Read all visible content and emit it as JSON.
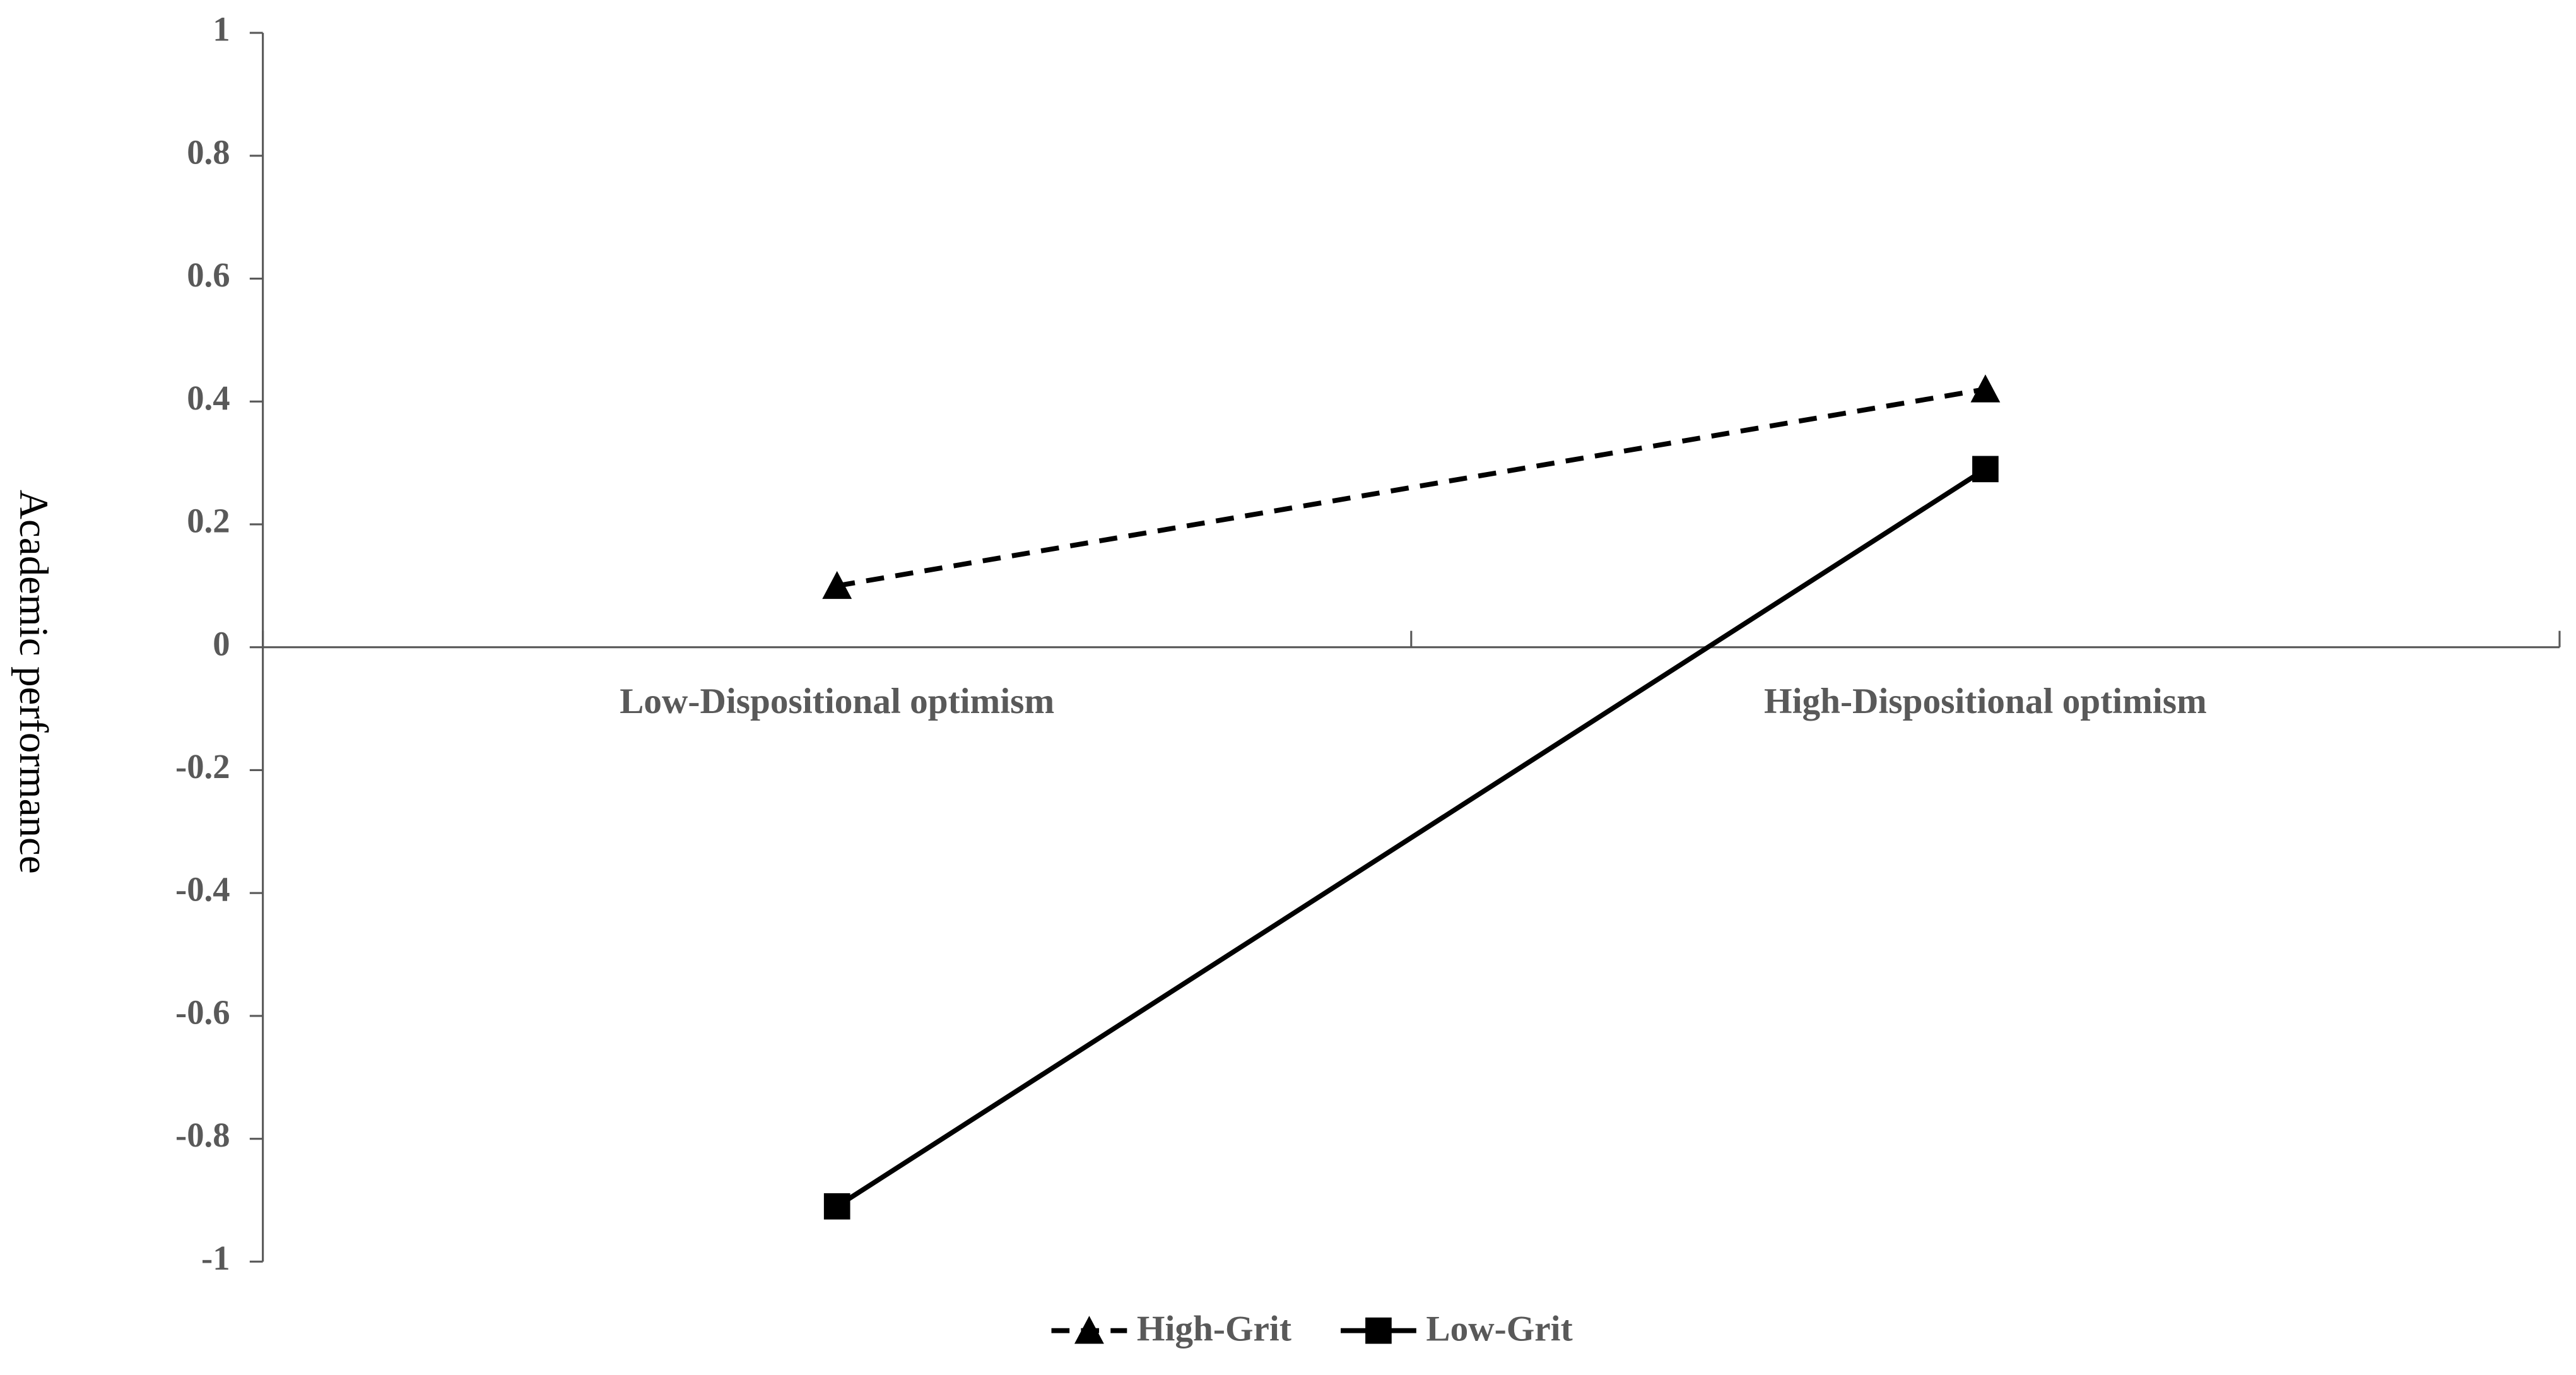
{
  "chart_data": {
    "type": "line",
    "y_label": "Academic performance",
    "categories": [
      "Low-Dispositional optimism",
      "High-Dispositional optimism"
    ],
    "series": [
      {
        "name": "High-Grit",
        "color": "#000000",
        "marker": "triangle",
        "line_style": "dashed",
        "values": [
          0.1,
          0.42
        ]
      },
      {
        "name": "Low-Grit",
        "color": "#000000",
        "marker": "square",
        "line_style": "solid",
        "values": [
          -0.91,
          0.29
        ]
      }
    ],
    "ylim": [
      -1,
      1
    ],
    "yticks": [
      1,
      0.8,
      0.6,
      0.4,
      0.2,
      0,
      -0.2,
      -0.4,
      -0.6,
      -0.8,
      -1
    ],
    "grid": false,
    "legend": "bottom"
  }
}
